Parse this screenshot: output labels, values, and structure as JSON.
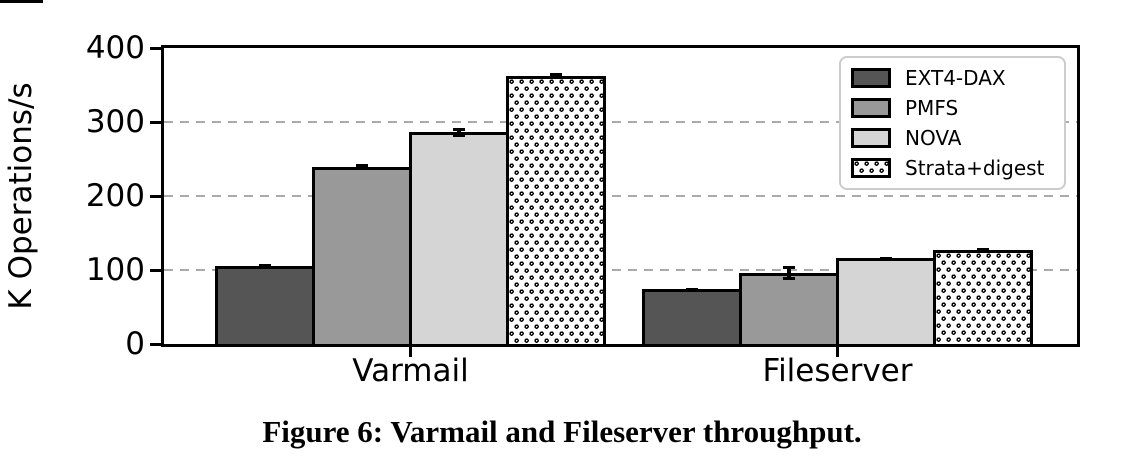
{
  "figure": {
    "caption": "Figure 6: Varmail and Fileserver throughput."
  },
  "chart_data": {
    "type": "bar",
    "title": "",
    "xlabel": "",
    "ylabel": "K Operations/s",
    "ylim": [
      0,
      400
    ],
    "yticks": [
      0,
      100,
      200,
      300,
      400
    ],
    "grid": "horizontal dashed",
    "legend_position": "upper right",
    "categories": [
      "Varmail",
      "Fileserver"
    ],
    "series": [
      {
        "name": "EXT4-DAX",
        "values": [
          105,
          74
        ],
        "errors": [
          3,
          2
        ],
        "color": "#555555",
        "pattern": "solid"
      },
      {
        "name": "PMFS",
        "values": [
          239,
          96
        ],
        "errors": [
          4,
          9
        ],
        "color": "#999999",
        "pattern": "solid"
      },
      {
        "name": "NOVA",
        "values": [
          286,
          116
        ],
        "errors": [
          6,
          2
        ],
        "color": "#d5d5d5",
        "pattern": "solid"
      },
      {
        "name": "Strata+digest",
        "values": [
          362,
          127
        ],
        "errors": [
          4,
          3
        ],
        "color": "#ffffff",
        "pattern": "dots"
      }
    ],
    "colors": {
      "axis": "#000000",
      "grid": "#aaaaaa",
      "error_bar": "#000000",
      "background": "#ffffff"
    }
  }
}
